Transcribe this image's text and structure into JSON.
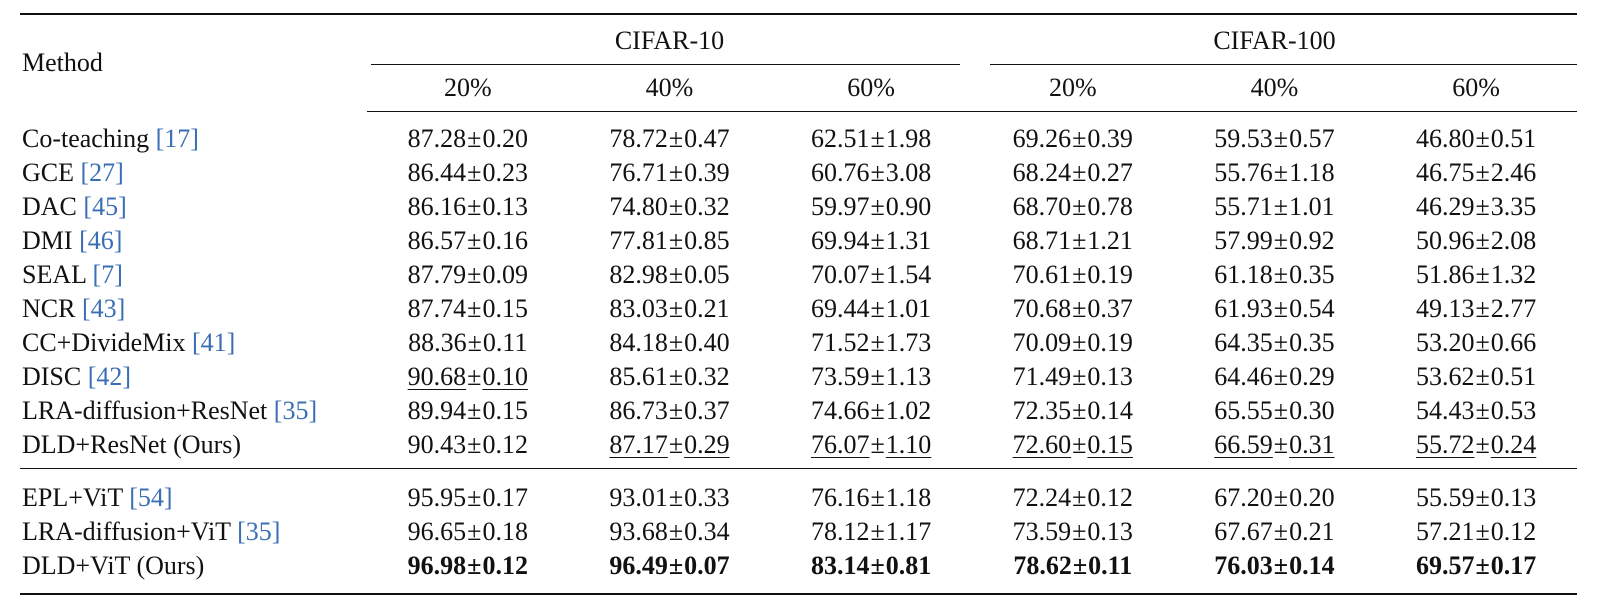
{
  "header": {
    "method_label": "Method",
    "groups": [
      "CIFAR-10",
      "CIFAR-100"
    ],
    "noise_levels": [
      "20%",
      "40%",
      "60%",
      "20%",
      "40%",
      "60%"
    ]
  },
  "colors": {
    "citation": "#3b6fb5",
    "text": "#111111"
  },
  "rows": [
    {
      "name": "Co-teaching ",
      "cite": "[17]",
      "cells": [
        {
          "mean": "87.28",
          "pm": "±",
          "std": "0.20"
        },
        {
          "mean": "78.72",
          "pm": "±",
          "std": "0.47"
        },
        {
          "mean": "62.51",
          "pm": "±",
          "std": "1.98"
        },
        {
          "mean": "69.26",
          "pm": "±",
          "std": "0.39"
        },
        {
          "mean": "59.53",
          "pm": "±",
          "std": "0.57"
        },
        {
          "mean": "46.80",
          "pm": "±",
          "std": "0.51"
        }
      ]
    },
    {
      "name": "GCE ",
      "cite": "[27]",
      "cells": [
        {
          "mean": "86.44",
          "pm": "±",
          "std": "0.23"
        },
        {
          "mean": "76.71",
          "pm": "±",
          "std": "0.39"
        },
        {
          "mean": "60.76",
          "pm": "±",
          "std": "3.08"
        },
        {
          "mean": "68.24",
          "pm": "±",
          "std": "0.27"
        },
        {
          "mean": "55.76",
          "pm": "±",
          "std": "1.18"
        },
        {
          "mean": "46.75",
          "pm": "±",
          "std": "2.46"
        }
      ]
    },
    {
      "name": "DAC ",
      "cite": "[45]",
      "cells": [
        {
          "mean": "86.16",
          "pm": "±",
          "std": "0.13"
        },
        {
          "mean": "74.80",
          "pm": "±",
          "std": "0.32"
        },
        {
          "mean": "59.97",
          "pm": "±",
          "std": "0.90"
        },
        {
          "mean": "68.70",
          "pm": "±",
          "std": "0.78"
        },
        {
          "mean": "55.71",
          "pm": "±",
          "std": "1.01"
        },
        {
          "mean": "46.29",
          "pm": "±",
          "std": "3.35"
        }
      ]
    },
    {
      "name": "DMI ",
      "cite": "[46]",
      "cells": [
        {
          "mean": "86.57",
          "pm": "±",
          "std": "0.16"
        },
        {
          "mean": "77.81",
          "pm": "±",
          "std": "0.85"
        },
        {
          "mean": "69.94",
          "pm": "±",
          "std": "1.31"
        },
        {
          "mean": "68.71",
          "pm": "±",
          "std": "1.21"
        },
        {
          "mean": "57.99",
          "pm": "±",
          "std": "0.92"
        },
        {
          "mean": "50.96",
          "pm": "±",
          "std": "2.08"
        }
      ]
    },
    {
      "name": "SEAL ",
      "cite": "[7]",
      "cells": [
        {
          "mean": "87.79",
          "pm": "±",
          "std": "0.09"
        },
        {
          "mean": "82.98",
          "pm": "±",
          "std": "0.05"
        },
        {
          "mean": "70.07",
          "pm": "±",
          "std": "1.54"
        },
        {
          "mean": "70.61",
          "pm": "±",
          "std": "0.19"
        },
        {
          "mean": "61.18",
          "pm": "±",
          "std": "0.35"
        },
        {
          "mean": "51.86",
          "pm": "±",
          "std": "1.32"
        }
      ]
    },
    {
      "name": "NCR ",
      "cite": "[43]",
      "cells": [
        {
          "mean": "87.74",
          "pm": "±",
          "std": "0.15"
        },
        {
          "mean": "83.03",
          "pm": "±",
          "std": "0.21"
        },
        {
          "mean": "69.44",
          "pm": "±",
          "std": "1.01"
        },
        {
          "mean": "70.68",
          "pm": "±",
          "std": "0.37"
        },
        {
          "mean": "61.93",
          "pm": "±",
          "std": "0.54"
        },
        {
          "mean": "49.13",
          "pm": "±",
          "std": "2.77"
        }
      ]
    },
    {
      "name": "CC+DivideMix ",
      "cite": "[41]",
      "cells": [
        {
          "mean": "88.36",
          "pm": "±",
          "std": "0.11"
        },
        {
          "mean": "84.18",
          "pm": "±",
          "std": "0.40"
        },
        {
          "mean": "71.52",
          "pm": "±",
          "std": "1.73"
        },
        {
          "mean": "70.09",
          "pm": "±",
          "std": "0.19"
        },
        {
          "mean": "64.35",
          "pm": "±",
          "std": "0.35"
        },
        {
          "mean": "53.20",
          "pm": "±",
          "std": "0.66"
        }
      ]
    },
    {
      "name": "DISC ",
      "cite": "[42]",
      "cells": [
        {
          "mean": "90.68",
          "pm": "±",
          "std": "0.10",
          "underline": true
        },
        {
          "mean": "85.61",
          "pm": "±",
          "std": "0.32"
        },
        {
          "mean": "73.59",
          "pm": "±",
          "std": "1.13"
        },
        {
          "mean": "71.49",
          "pm": "±",
          "std": "0.13"
        },
        {
          "mean": "64.46",
          "pm": "±",
          "std": "0.29"
        },
        {
          "mean": "53.62",
          "pm": "±",
          "std": "0.51"
        }
      ]
    },
    {
      "name": "LRA-diffusion+ResNet ",
      "cite": "[35]",
      "cells": [
        {
          "mean": "89.94",
          "pm": "±",
          "std": "0.15"
        },
        {
          "mean": "86.73",
          "pm": "±",
          "std": "0.37"
        },
        {
          "mean": "74.66",
          "pm": "±",
          "std": "1.02"
        },
        {
          "mean": "72.35",
          "pm": "±",
          "std": "0.14"
        },
        {
          "mean": "65.55",
          "pm": "±",
          "std": "0.30"
        },
        {
          "mean": "54.43",
          "pm": "±",
          "std": "0.53"
        }
      ]
    },
    {
      "name": "DLD+ResNet (Ours)",
      "cite": "",
      "cells": [
        {
          "mean": "90.43",
          "pm": "±",
          "std": "0.12"
        },
        {
          "mean": "87.17",
          "pm": "±",
          "std": "0.29",
          "underline": true
        },
        {
          "mean": "76.07",
          "pm": "±",
          "std": "1.10",
          "underline": true
        },
        {
          "mean": "72.60",
          "pm": "±",
          "std": "0.15",
          "underline": true
        },
        {
          "mean": "66.59",
          "pm": "±",
          "std": "0.31",
          "underline": true
        },
        {
          "mean": "55.72",
          "pm": "±",
          "std": "0.24",
          "underline": true
        }
      ]
    },
    {
      "name": "EPL+ViT ",
      "cite": "[54]",
      "cells": [
        {
          "mean": "95.95",
          "pm": "±",
          "std": "0.17"
        },
        {
          "mean": "93.01",
          "pm": "±",
          "std": "0.33"
        },
        {
          "mean": "76.16",
          "pm": "±",
          "std": "1.18"
        },
        {
          "mean": "72.24",
          "pm": "±",
          "std": "0.12"
        },
        {
          "mean": "67.20",
          "pm": "±",
          "std": "0.20"
        },
        {
          "mean": "55.59",
          "pm": "±",
          "std": "0.13"
        }
      ]
    },
    {
      "name": "LRA-diffusion+ViT ",
      "cite": "[35]",
      "cells": [
        {
          "mean": "96.65",
          "pm": "±",
          "std": "0.18"
        },
        {
          "mean": "93.68",
          "pm": "±",
          "std": "0.34"
        },
        {
          "mean": "78.12",
          "pm": "±",
          "std": "1.17"
        },
        {
          "mean": "73.59",
          "pm": "±",
          "std": "0.13"
        },
        {
          "mean": "67.67",
          "pm": "±",
          "std": "0.21"
        },
        {
          "mean": "57.21",
          "pm": "±",
          "std": "0.12"
        }
      ]
    },
    {
      "name": "DLD+ViT (Ours)",
      "cite": "",
      "cells": [
        {
          "mean": "96.98",
          "pm": "±",
          "std": "0.12",
          "bold": true
        },
        {
          "mean": "96.49",
          "pm": "±",
          "std": "0.07",
          "bold": true
        },
        {
          "mean": "83.14",
          "pm": "±",
          "std": "0.81",
          "bold": true
        },
        {
          "mean": "78.62",
          "pm": "±",
          "std": "0.11",
          "bold": true
        },
        {
          "mean": "76.03",
          "pm": "±",
          "std": "0.14",
          "bold": true
        },
        {
          "mean": "69.57",
          "pm": "±",
          "std": "0.17",
          "bold": true
        }
      ]
    }
  ]
}
